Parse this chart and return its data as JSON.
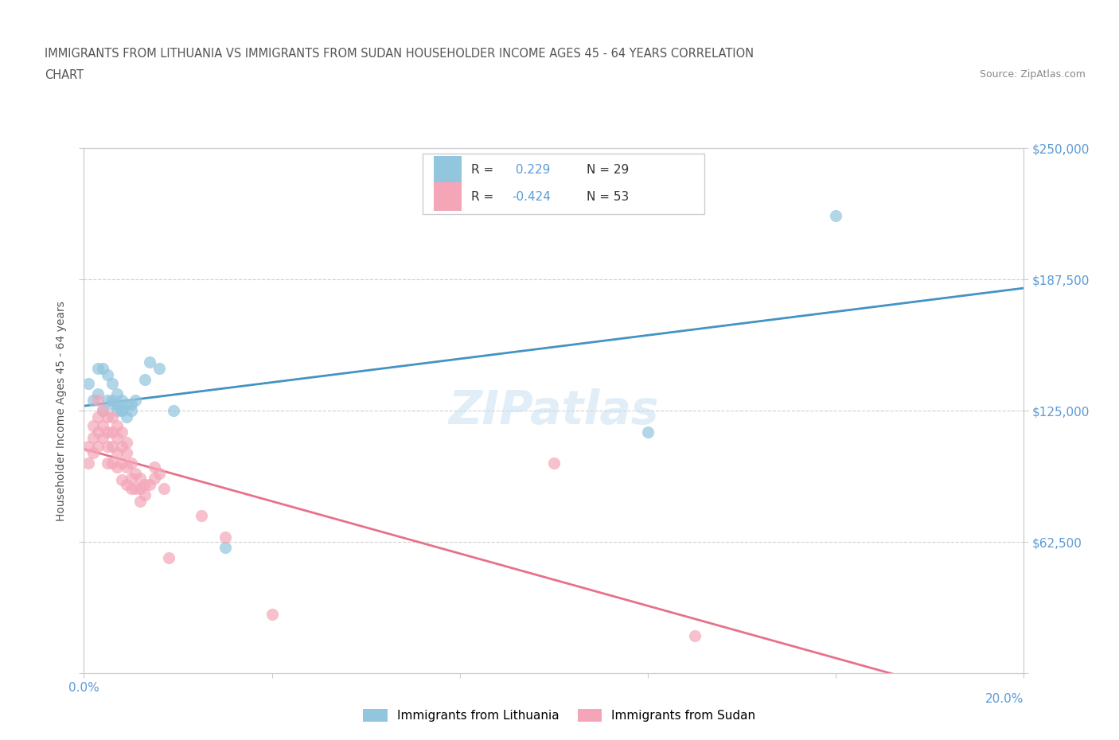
{
  "title_line1": "IMMIGRANTS FROM LITHUANIA VS IMMIGRANTS FROM SUDAN HOUSEHOLDER INCOME AGES 45 - 64 YEARS CORRELATION",
  "title_line2": "CHART",
  "source_text": "Source: ZipAtlas.com",
  "ylabel": "Householder Income Ages 45 - 64 years",
  "xlim": [
    0.0,
    0.2
  ],
  "ylim": [
    0,
    250000
  ],
  "xticks": [
    0.0,
    0.04,
    0.08,
    0.12,
    0.16,
    0.2
  ],
  "yticks": [
    0,
    62500,
    125000,
    187500,
    250000
  ],
  "yticklabels_right": [
    "",
    "$62,500",
    "$125,000",
    "$187,500",
    "$250,000"
  ],
  "grid_color": "#d0d0d0",
  "watermark": "ZIPatlas",
  "lithuania_color": "#92c5de",
  "sudan_color": "#f4a6b8",
  "lithuania_R": 0.229,
  "lithuania_N": 29,
  "sudan_R": -0.424,
  "sudan_N": 53,
  "lithuania_line_color": "#4393c3",
  "sudan_line_color": "#e8718a",
  "lithuania_scatter_x": [
    0.001,
    0.002,
    0.003,
    0.003,
    0.004,
    0.004,
    0.005,
    0.005,
    0.006,
    0.006,
    0.006,
    0.007,
    0.007,
    0.007,
    0.008,
    0.008,
    0.008,
    0.009,
    0.009,
    0.01,
    0.01,
    0.011,
    0.013,
    0.014,
    0.016,
    0.019,
    0.03,
    0.12,
    0.16
  ],
  "lithuania_scatter_y": [
    138000,
    130000,
    145000,
    133000,
    125000,
    145000,
    130000,
    142000,
    130000,
    138000,
    128000,
    125000,
    133000,
    128000,
    125000,
    130000,
    125000,
    128000,
    122000,
    128000,
    125000,
    130000,
    140000,
    148000,
    145000,
    125000,
    60000,
    115000,
    218000
  ],
  "sudan_scatter_x": [
    0.001,
    0.001,
    0.002,
    0.002,
    0.002,
    0.003,
    0.003,
    0.003,
    0.003,
    0.004,
    0.004,
    0.004,
    0.005,
    0.005,
    0.005,
    0.005,
    0.006,
    0.006,
    0.006,
    0.006,
    0.007,
    0.007,
    0.007,
    0.007,
    0.008,
    0.008,
    0.008,
    0.008,
    0.009,
    0.009,
    0.009,
    0.009,
    0.01,
    0.01,
    0.01,
    0.011,
    0.011,
    0.012,
    0.012,
    0.012,
    0.013,
    0.013,
    0.014,
    0.015,
    0.015,
    0.016,
    0.017,
    0.018,
    0.025,
    0.03,
    0.04,
    0.1,
    0.13
  ],
  "sudan_scatter_y": [
    108000,
    100000,
    118000,
    112000,
    105000,
    130000,
    122000,
    115000,
    108000,
    125000,
    118000,
    112000,
    122000,
    115000,
    108000,
    100000,
    122000,
    115000,
    108000,
    100000,
    118000,
    112000,
    105000,
    98000,
    115000,
    108000,
    100000,
    92000,
    110000,
    105000,
    98000,
    90000,
    100000,
    93000,
    88000,
    95000,
    88000,
    93000,
    88000,
    82000,
    90000,
    85000,
    90000,
    98000,
    93000,
    95000,
    88000,
    55000,
    75000,
    65000,
    28000,
    100000,
    18000
  ],
  "background_color": "#ffffff",
  "tick_label_color": "#5b9bd5",
  "title_color": "#555555",
  "r_value_color": "#5b9bd5",
  "legend_label_color": "#333333"
}
